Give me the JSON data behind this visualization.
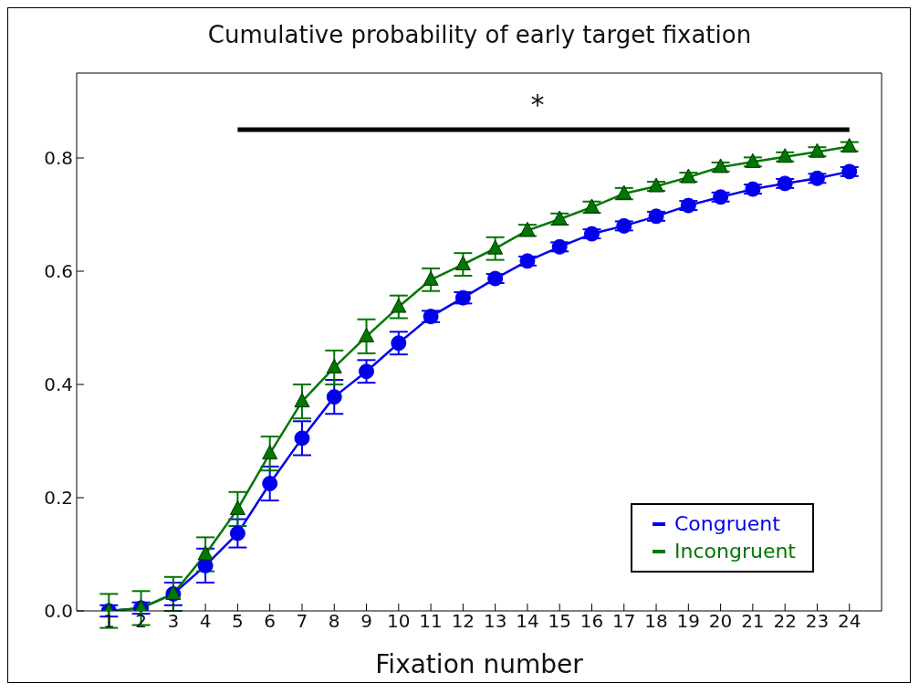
{
  "chart_data": {
    "type": "line",
    "title": "Cumulative probability of early target fixation",
    "xlabel": "Fixation number",
    "x": [
      1,
      2,
      3,
      4,
      5,
      6,
      7,
      8,
      9,
      10,
      11,
      12,
      13,
      14,
      15,
      16,
      17,
      18,
      19,
      20,
      21,
      22,
      23,
      24
    ],
    "xlim": [
      0,
      25
    ],
    "xticks": [
      1,
      2,
      3,
      4,
      5,
      6,
      7,
      8,
      9,
      10,
      11,
      12,
      13,
      14,
      15,
      16,
      17,
      18,
      19,
      20,
      21,
      22,
      23,
      24
    ],
    "ylim": [
      0,
      0.95
    ],
    "yticks": [
      {
        "value": 0,
        "label": "0.0"
      },
      {
        "value": 0.2,
        "label": "0.2"
      },
      {
        "value": 0.4,
        "label": "0.4"
      },
      {
        "value": 0.6,
        "label": "0.6"
      },
      {
        "value": 0.8,
        "label": "0.8"
      }
    ],
    "grid": false,
    "legend": "bottom right",
    "series": [
      {
        "name": "Congruent",
        "color": "#0000ee",
        "marker": "circle",
        "values": [
          0.0,
          0.005,
          0.03,
          0.08,
          0.137,
          0.225,
          0.305,
          0.378,
          0.423,
          0.473,
          0.52,
          0.553,
          0.587,
          0.618,
          0.643,
          0.666,
          0.68,
          0.697,
          0.716,
          0.731,
          0.745,
          0.755,
          0.764,
          0.776
        ],
        "errors": [
          0.01,
          0.01,
          0.02,
          0.03,
          0.025,
          0.03,
          0.03,
          0.03,
          0.02,
          0.02,
          0.01,
          0.01,
          0.008,
          0.008,
          0.008,
          0.008,
          0.008,
          0.008,
          0.008,
          0.008,
          0.008,
          0.008,
          0.008,
          0.008
        ]
      },
      {
        "name": "Incongruent",
        "color": "#007700",
        "marker": "triangle",
        "values": [
          0.0,
          0.005,
          0.03,
          0.1,
          0.18,
          0.278,
          0.37,
          0.43,
          0.485,
          0.537,
          0.585,
          0.612,
          0.64,
          0.672,
          0.692,
          0.713,
          0.737,
          0.75,
          0.766,
          0.784,
          0.793,
          0.802,
          0.811,
          0.82
        ],
        "errors": [
          0.03,
          0.03,
          0.03,
          0.03,
          0.03,
          0.03,
          0.03,
          0.03,
          0.03,
          0.02,
          0.02,
          0.02,
          0.02,
          0.01,
          0.01,
          0.01,
          0.01,
          0.008,
          0.008,
          0.008,
          0.008,
          0.008,
          0.008,
          0.008
        ]
      },
      {
        "type": "line",
        "color": "#000000",
        "marker": "none",
        "x": [
          5,
          24
        ],
        "values": [
          0.85,
          0.85
        ]
      }
    ],
    "annotations": [
      "*"
    ]
  }
}
